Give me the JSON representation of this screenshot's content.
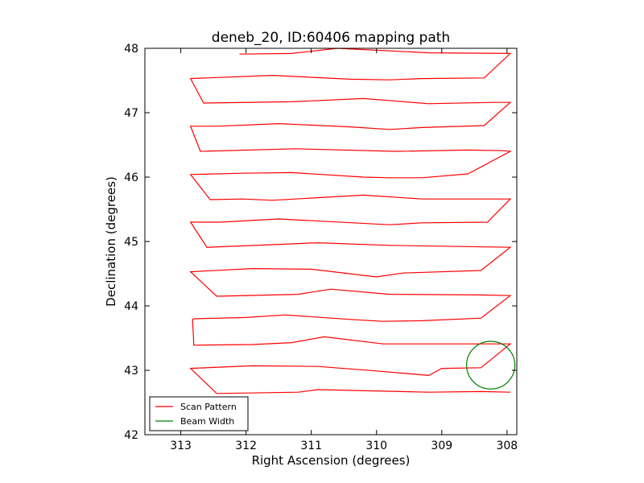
{
  "chart_data": {
    "type": "line",
    "title": "deneb_20, ID:60406 mapping path",
    "xlabel": "Right Ascension (degrees)",
    "ylabel": "Declination (degrees)",
    "xlim": [
      313.55,
      307.85
    ],
    "ylim": [
      42,
      48
    ],
    "x_ticks": [
      313,
      312,
      311,
      310,
      309,
      308
    ],
    "y_ticks": [
      42,
      43,
      44,
      45,
      46,
      47,
      48
    ],
    "x_tick_labels": [
      "313",
      "312",
      "311",
      "310",
      "309",
      "308"
    ],
    "y_tick_labels": [
      "42",
      "43",
      "44",
      "45",
      "46",
      "47",
      "48"
    ],
    "grid": false,
    "legend_position": "lower-left",
    "series": [
      {
        "name": "Scan Pattern",
        "color": "#ff0000",
        "kind": "line",
        "points": [
          [
            312.1,
            47.91
          ],
          [
            311.3,
            47.92
          ],
          [
            310.6,
            48.0
          ],
          [
            309.2,
            47.93
          ],
          [
            307.95,
            47.92
          ],
          [
            308.35,
            47.54
          ],
          [
            309.3,
            47.53
          ],
          [
            309.8,
            47.51
          ],
          [
            310.4,
            47.52
          ],
          [
            311.6,
            47.58
          ],
          [
            312.6,
            47.54
          ],
          [
            312.85,
            47.53
          ],
          [
            312.65,
            47.15
          ],
          [
            311.3,
            47.17
          ],
          [
            310.2,
            47.22
          ],
          [
            309.2,
            47.14
          ],
          [
            308.2,
            47.16
          ],
          [
            307.95,
            47.16
          ],
          [
            308.35,
            46.8
          ],
          [
            309.3,
            46.77
          ],
          [
            309.8,
            46.74
          ],
          [
            310.4,
            46.78
          ],
          [
            311.5,
            46.83
          ],
          [
            312.45,
            46.79
          ],
          [
            312.85,
            46.79
          ],
          [
            312.7,
            46.4
          ],
          [
            311.25,
            46.44
          ],
          [
            309.7,
            46.4
          ],
          [
            308.6,
            46.42
          ],
          [
            308.05,
            46.41
          ],
          [
            307.95,
            46.4
          ],
          [
            308.6,
            46.05
          ],
          [
            309.3,
            45.99
          ],
          [
            309.8,
            45.99
          ],
          [
            310.2,
            46.0
          ],
          [
            311.3,
            46.07
          ],
          [
            312.05,
            46.06
          ],
          [
            312.85,
            46.04
          ],
          [
            312.55,
            45.65
          ],
          [
            312.05,
            45.66
          ],
          [
            311.6,
            45.64
          ],
          [
            310.2,
            45.72
          ],
          [
            309.3,
            45.66
          ],
          [
            307.95,
            45.66
          ],
          [
            308.3,
            45.3
          ],
          [
            309.3,
            45.29
          ],
          [
            309.8,
            45.26
          ],
          [
            311.5,
            45.35
          ],
          [
            312.4,
            45.3
          ],
          [
            312.85,
            45.3
          ],
          [
            312.6,
            44.91
          ],
          [
            310.9,
            44.98
          ],
          [
            309.8,
            44.94
          ],
          [
            307.95,
            44.91
          ],
          [
            308.4,
            44.55
          ],
          [
            309.6,
            44.51
          ],
          [
            310.0,
            44.45
          ],
          [
            311.0,
            44.57
          ],
          [
            311.9,
            44.58
          ],
          [
            312.85,
            44.53
          ],
          [
            312.45,
            44.15
          ],
          [
            311.2,
            44.18
          ],
          [
            310.7,
            44.26
          ],
          [
            309.8,
            44.18
          ],
          [
            308.4,
            44.17
          ],
          [
            307.95,
            44.16
          ],
          [
            308.4,
            43.81
          ],
          [
            309.3,
            43.77
          ],
          [
            309.9,
            43.76
          ],
          [
            310.4,
            43.79
          ],
          [
            311.4,
            43.86
          ],
          [
            312.0,
            43.82
          ],
          [
            312.8,
            43.8
          ],
          [
            312.82,
            43.79
          ],
          [
            312.8,
            43.39
          ],
          [
            311.9,
            43.4
          ],
          [
            311.3,
            43.43
          ],
          [
            310.8,
            43.52
          ],
          [
            309.9,
            43.41
          ],
          [
            308.4,
            43.41
          ],
          [
            307.95,
            43.41
          ],
          [
            308.4,
            43.04
          ],
          [
            309.0,
            43.03
          ],
          [
            309.2,
            42.92
          ],
          [
            310.0,
            42.99
          ],
          [
            310.9,
            43.06
          ],
          [
            311.9,
            43.07
          ],
          [
            312.85,
            43.03
          ],
          [
            312.45,
            42.64
          ],
          [
            311.2,
            42.66
          ],
          [
            310.9,
            42.7
          ],
          [
            309.2,
            42.66
          ],
          [
            308.4,
            42.67
          ],
          [
            307.95,
            42.66
          ]
        ]
      },
      {
        "name": "Beam Width",
        "color": "#008000",
        "kind": "circle",
        "center": [
          308.25,
          43.08
        ],
        "radius": 0.37
      }
    ]
  }
}
